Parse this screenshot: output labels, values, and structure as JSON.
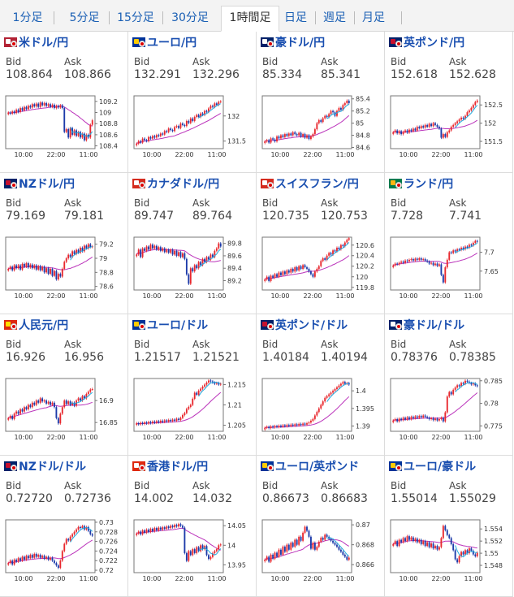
{
  "tabs": [
    {
      "label": "1分足"
    },
    {
      "label": "5分足"
    },
    {
      "label": "15分足"
    },
    {
      "label": "30分足"
    },
    {
      "label": "1時間足",
      "active": true
    },
    {
      "label": "日足"
    },
    {
      "label": "週足"
    },
    {
      "label": "月足"
    }
  ],
  "colors": {
    "up": "#e8282e",
    "down": "#1c3aa9",
    "ma_long": "#bb33bb",
    "ma_short": "#22aadd",
    "link": "#1a4fb0"
  },
  "bid_label": "Bid",
  "ask_label": "Ask",
  "pairs": [
    {
      "name": "米ドル/円",
      "flag": "usd-jpy-flag-icon",
      "bid": "108.864",
      "ask": "108.866"
    },
    {
      "name": "ユーロ/円",
      "flag": "eur-jpy-flag-icon",
      "bid": "132.291",
      "ask": "132.296"
    },
    {
      "name": "豪ドル/円",
      "flag": "aud-jpy-flag-icon",
      "bid": "85.334",
      "ask": "85.341"
    },
    {
      "name": "英ポンド/円",
      "flag": "gbp-jpy-flag-icon",
      "bid": "152.618",
      "ask": "152.628"
    },
    {
      "name": "NZドル/円",
      "flag": "nzd-jpy-flag-icon",
      "bid": "79.169",
      "ask": "79.181"
    },
    {
      "name": "カナダドル/円",
      "flag": "cad-jpy-flag-icon",
      "bid": "89.747",
      "ask": "89.764"
    },
    {
      "name": "スイスフラン/円",
      "flag": "chf-jpy-flag-icon",
      "bid": "120.735",
      "ask": "120.753"
    },
    {
      "name": "ランド/円",
      "flag": "zar-jpy-flag-icon",
      "bid": "7.728",
      "ask": "7.741"
    },
    {
      "name": "人民元/円",
      "flag": "cny-jpy-flag-icon",
      "bid": "16.926",
      "ask": "16.956"
    },
    {
      "name": "ユーロ/ドル",
      "flag": "eur-usd-flag-icon",
      "bid": "1.21517",
      "ask": "1.21521"
    },
    {
      "name": "英ポンド/ドル",
      "flag": "gbp-usd-flag-icon",
      "bid": "1.40184",
      "ask": "1.40194"
    },
    {
      "name": "豪ドル/ドル",
      "flag": "aud-usd-flag-icon",
      "bid": "0.78376",
      "ask": "0.78385"
    },
    {
      "name": "NZドル/ドル",
      "flag": "nzd-usd-flag-icon",
      "bid": "0.72720",
      "ask": "0.72736"
    },
    {
      "name": "香港ドル/円",
      "flag": "hkd-jpy-flag-icon",
      "bid": "14.002",
      "ask": "14.032"
    },
    {
      "name": "ユーロ/英ポンド",
      "flag": "eur-gbp-flag-icon",
      "bid": "0.86673",
      "ask": "0.86683"
    },
    {
      "name": "ユーロ/豪ドル",
      "flag": "eur-aud-flag-icon",
      "bid": "1.55014",
      "ask": "1.55029"
    }
  ],
  "chart_data": [
    {
      "type": "candlestick",
      "xticks": [
        "10:00",
        "22:00",
        "11:00"
      ],
      "yticks": [
        "109.2",
        "109",
        "108.8",
        "108.6",
        "108.4"
      ],
      "ylim": [
        108.35,
        109.3
      ],
      "close": [
        109.0,
        108.98,
        109.02,
        108.99,
        109.05,
        109.01,
        109.08,
        109.04,
        109.1,
        109.06,
        109.12,
        109.09,
        109.15,
        109.11,
        109.16,
        109.1,
        109.18,
        109.13,
        109.17,
        109.12,
        109.15,
        109.1,
        109.14,
        109.08,
        109.12,
        109.09,
        109.13,
        109.08,
        108.65,
        108.7,
        108.55,
        108.72,
        108.6,
        108.68,
        108.58,
        108.65,
        108.55,
        108.62,
        108.5,
        108.6,
        108.55,
        108.78,
        108.86
      ]
    },
    {
      "type": "candlestick",
      "xticks": [
        "10:00",
        "22:00",
        "11:00"
      ],
      "yticks": [
        "132",
        "131.5"
      ],
      "ylim": [
        131.35,
        132.4
      ],
      "close": [
        131.45,
        131.5,
        131.47,
        131.55,
        131.52,
        131.5,
        131.58,
        131.55,
        131.6,
        131.57,
        131.62,
        131.6,
        131.65,
        131.63,
        131.7,
        131.68,
        131.75,
        131.72,
        131.7,
        131.78,
        131.8,
        131.76,
        131.85,
        131.82,
        131.8,
        131.9,
        131.86,
        131.95,
        131.9,
        131.98,
        132.02,
        131.98,
        132.05,
        132.02,
        132.1,
        132.08,
        132.15,
        132.2,
        132.18,
        132.25,
        132.22,
        132.28,
        132.29
      ]
    },
    {
      "type": "candlestick",
      "xticks": [
        "10:00",
        "22:00",
        "11:00"
      ],
      "yticks": [
        "85.4",
        "85.2",
        "85",
        "84.8",
        "84.6"
      ],
      "ylim": [
        84.58,
        85.45
      ],
      "close": [
        84.7,
        84.72,
        84.68,
        84.75,
        84.73,
        84.7,
        84.78,
        84.75,
        84.8,
        84.77,
        84.82,
        84.79,
        84.83,
        84.8,
        84.85,
        84.82,
        84.8,
        84.84,
        84.78,
        84.82,
        84.76,
        84.8,
        84.74,
        84.78,
        84.82,
        84.9,
        85.0,
        85.05,
        85.02,
        85.08,
        85.12,
        85.1,
        85.15,
        85.2,
        85.18,
        85.12,
        85.2,
        85.25,
        85.22,
        85.3,
        85.33,
        85.37,
        85.33
      ]
    },
    {
      "type": "candlestick",
      "xticks": [
        "10:00",
        "22:00",
        "11:00"
      ],
      "yticks": [
        "152.5",
        "152",
        "151.5"
      ],
      "ylim": [
        151.3,
        152.75
      ],
      "close": [
        151.75,
        151.8,
        151.72,
        151.78,
        151.7,
        151.76,
        151.8,
        151.74,
        151.82,
        151.78,
        151.85,
        151.8,
        151.9,
        151.86,
        151.92,
        151.88,
        151.95,
        151.9,
        151.98,
        151.92,
        152.0,
        151.95,
        151.9,
        151.85,
        151.6,
        151.7,
        151.62,
        151.75,
        151.8,
        151.9,
        151.95,
        152.0,
        152.05,
        152.1,
        152.15,
        152.12,
        152.2,
        152.3,
        152.35,
        152.42,
        152.5,
        152.58,
        152.62
      ]
    },
    {
      "type": "candlestick",
      "xticks": [
        "10:00",
        "22:00",
        "11:00"
      ],
      "yticks": [
        "79.2",
        "79",
        "78.8",
        "78.6"
      ],
      "ylim": [
        78.55,
        79.3
      ],
      "close": [
        78.85,
        78.88,
        78.83,
        78.9,
        78.86,
        78.9,
        78.84,
        78.92,
        78.88,
        78.93,
        78.87,
        78.91,
        78.86,
        78.9,
        78.84,
        78.89,
        78.83,
        78.88,
        78.8,
        78.86,
        78.78,
        78.85,
        78.75,
        78.82,
        78.7,
        78.78,
        78.74,
        78.85,
        78.95,
        79.0,
        79.05,
        79.02,
        79.1,
        79.06,
        79.12,
        79.08,
        79.15,
        79.1,
        79.18,
        79.14,
        79.2,
        79.16,
        79.17
      ]
    },
    {
      "type": "candlestick",
      "xticks": [
        "10:00",
        "22:00",
        "11:00"
      ],
      "yticks": [
        "89.8",
        "89.6",
        "89.4",
        "89.2"
      ],
      "ylim": [
        89.05,
        89.9
      ],
      "close": [
        89.62,
        89.7,
        89.58,
        89.72,
        89.68,
        89.75,
        89.7,
        89.78,
        89.72,
        89.76,
        89.7,
        89.74,
        89.68,
        89.72,
        89.66,
        89.7,
        89.65,
        89.7,
        89.62,
        89.68,
        89.6,
        89.66,
        89.58,
        89.64,
        89.55,
        89.3,
        89.15,
        89.4,
        89.35,
        89.45,
        89.4,
        89.5,
        89.45,
        89.55,
        89.5,
        89.58,
        89.54,
        89.62,
        89.58,
        89.68,
        89.72,
        89.8,
        89.75
      ]
    },
    {
      "type": "candlestick",
      "xticks": [
        "10:00",
        "22:00",
        "11:00"
      ],
      "yticks": [
        "120.6",
        "120.4",
        "120.2",
        "120",
        "119.8"
      ],
      "ylim": [
        119.75,
        120.75
      ],
      "close": [
        119.95,
        120.0,
        119.92,
        120.02,
        119.98,
        120.05,
        120.0,
        120.08,
        120.03,
        120.1,
        120.05,
        120.12,
        120.08,
        120.15,
        120.1,
        120.18,
        120.12,
        120.2,
        120.15,
        120.22,
        120.18,
        120.15,
        120.1,
        120.05,
        120.0,
        120.1,
        120.15,
        120.2,
        120.3,
        120.35,
        120.32,
        120.4,
        120.45,
        120.42,
        120.5,
        120.48,
        120.55,
        120.52,
        120.6,
        120.58,
        120.65,
        120.7,
        120.73
      ]
    },
    {
      "type": "candlestick",
      "xticks": [
        "10:00",
        "22:00",
        "11:00"
      ],
      "yticks": [
        "7.7",
        "7.65"
      ],
      "ylim": [
        7.6,
        7.74
      ],
      "close": [
        7.665,
        7.67,
        7.668,
        7.672,
        7.675,
        7.672,
        7.678,
        7.676,
        7.68,
        7.682,
        7.678,
        7.683,
        7.68,
        7.684,
        7.68,
        7.682,
        7.678,
        7.675,
        7.67,
        7.672,
        7.666,
        7.67,
        7.664,
        7.668,
        7.64,
        7.62,
        7.66,
        7.68,
        7.7,
        7.698,
        7.705,
        7.702,
        7.708,
        7.706,
        7.712,
        7.708,
        7.715,
        7.712,
        7.72,
        7.718,
        7.725,
        7.73,
        7.728
      ]
    },
    {
      "type": "candlestick",
      "xticks": [
        "10:00",
        "22:00",
        "11:00"
      ],
      "yticks": [
        "16.9",
        "16.85"
      ],
      "ylim": [
        16.83,
        16.95
      ],
      "close": [
        16.86,
        16.865,
        16.858,
        16.87,
        16.875,
        16.87,
        16.88,
        16.875,
        16.885,
        16.88,
        16.89,
        16.885,
        16.895,
        16.89,
        16.9,
        16.895,
        16.905,
        16.898,
        16.9,
        16.893,
        16.897,
        16.89,
        16.895,
        16.885,
        16.86,
        16.848,
        16.87,
        16.885,
        16.9,
        16.892,
        16.898,
        16.89,
        16.895,
        16.888,
        16.9,
        16.905,
        16.9,
        16.91,
        16.905,
        16.915,
        16.92,
        16.925,
        16.926
      ]
    },
    {
      "type": "candlestick",
      "xticks": [
        "10:00",
        "22:00",
        "11:00"
      ],
      "yticks": [
        "1.215",
        "1.21",
        "1.205"
      ],
      "ylim": [
        1.2035,
        1.2165
      ],
      "close": [
        1.2055,
        1.2052,
        1.2056,
        1.2053,
        1.2057,
        1.2054,
        1.2058,
        1.2055,
        1.2059,
        1.2056,
        1.206,
        1.2057,
        1.2061,
        1.2058,
        1.2062,
        1.2059,
        1.2063,
        1.206,
        1.2064,
        1.2061,
        1.2066,
        1.2063,
        1.2068,
        1.2075,
        1.208,
        1.209,
        1.2095,
        1.21,
        1.2115,
        1.213,
        1.2125,
        1.2135,
        1.214,
        1.2145,
        1.215,
        1.2155,
        1.216,
        1.2158,
        1.2155,
        1.2152,
        1.2154,
        1.215,
        1.2152
      ]
    },
    {
      "type": "candlestick",
      "xticks": [
        "10:00",
        "22:00",
        "11:00"
      ],
      "yticks": [
        "1.4",
        "1.395",
        "1.39"
      ],
      "ylim": [
        1.3885,
        1.4035
      ],
      "close": [
        1.3895,
        1.3898,
        1.3894,
        1.3899,
        1.3896,
        1.39,
        1.3897,
        1.3901,
        1.3898,
        1.3902,
        1.3899,
        1.3903,
        1.39,
        1.3904,
        1.3901,
        1.3905,
        1.3902,
        1.3906,
        1.3903,
        1.3907,
        1.3904,
        1.3908,
        1.391,
        1.3915,
        1.392,
        1.393,
        1.394,
        1.395,
        1.396,
        1.397,
        1.398,
        1.3985,
        1.399,
        1.3995,
        1.4,
        1.4005,
        1.401,
        1.4015,
        1.402,
        1.4025,
        1.402,
        1.4022,
        1.4018
      ]
    },
    {
      "type": "candlestick",
      "xticks": [
        "10:00",
        "22:00",
        "11:00"
      ],
      "yticks": [
        "0.785",
        "0.78",
        "0.775"
      ],
      "ylim": [
        0.7738,
        0.7855
      ],
      "close": [
        0.7762,
        0.7765,
        0.776,
        0.7766,
        0.7763,
        0.7768,
        0.7764,
        0.7769,
        0.7765,
        0.777,
        0.7767,
        0.7771,
        0.7768,
        0.7772,
        0.7769,
        0.7773,
        0.777,
        0.7768,
        0.7765,
        0.7767,
        0.7763,
        0.7766,
        0.7762,
        0.7765,
        0.7768,
        0.776,
        0.778,
        0.7815,
        0.7825,
        0.782,
        0.783,
        0.7835,
        0.784,
        0.7838,
        0.7845,
        0.7843,
        0.785,
        0.7848,
        0.7845,
        0.7842,
        0.7844,
        0.784,
        0.7838
      ]
    },
    {
      "type": "candlestick",
      "xticks": [
        "10:00",
        "22:00",
        "11:00"
      ],
      "yticks": [
        "0.73",
        "0.728",
        "0.726",
        "0.724",
        "0.722",
        "0.72"
      ],
      "ylim": [
        0.7195,
        0.7305
      ],
      "close": [
        0.7215,
        0.722,
        0.7212,
        0.7222,
        0.7218,
        0.7225,
        0.722,
        0.7228,
        0.7222,
        0.723,
        0.7225,
        0.7232,
        0.7226,
        0.7234,
        0.7228,
        0.7232,
        0.7226,
        0.723,
        0.7224,
        0.7228,
        0.7222,
        0.7226,
        0.722,
        0.7215,
        0.721,
        0.7205,
        0.722,
        0.724,
        0.7255,
        0.7265,
        0.7262,
        0.727,
        0.7275,
        0.728,
        0.7285,
        0.729,
        0.7288,
        0.7292,
        0.7285,
        0.729,
        0.7282,
        0.7275,
        0.7272
      ]
    },
    {
      "type": "candlestick",
      "xticks": [
        "10:00",
        "22:00",
        "11:00"
      ],
      "yticks": [
        "14.05",
        "14",
        "13.95"
      ],
      "ylim": [
        13.93,
        14.065
      ],
      "close": [
        14.03,
        14.035,
        14.028,
        14.038,
        14.032,
        14.04,
        14.034,
        14.042,
        14.036,
        14.044,
        14.038,
        14.045,
        14.04,
        14.046,
        14.042,
        14.048,
        14.044,
        14.05,
        14.046,
        14.052,
        14.048,
        14.054,
        14.05,
        14.045,
        13.98,
        13.96,
        13.985,
        13.975,
        13.99,
        13.98,
        13.995,
        13.985,
        14.0,
        13.99,
        13.998,
        13.975,
        13.965,
        13.97,
        13.98,
        13.985,
        13.99,
        14.0,
        14.002
      ]
    },
    {
      "type": "candlestick",
      "xticks": [
        "10:00",
        "22:00",
        "11:00"
      ],
      "yticks": [
        "0.87",
        "0.868",
        "0.866"
      ],
      "ylim": [
        0.8652,
        0.8705
      ],
      "close": [
        0.8665,
        0.8668,
        0.8663,
        0.867,
        0.8666,
        0.8672,
        0.8668,
        0.8675,
        0.867,
        0.8678,
        0.8673,
        0.868,
        0.8675,
        0.8682,
        0.8678,
        0.8685,
        0.868,
        0.8688,
        0.8684,
        0.8692,
        0.8698,
        0.8694,
        0.8688,
        0.8676,
        0.8682,
        0.8675,
        0.8678,
        0.8683,
        0.8687,
        0.8685,
        0.869,
        0.8688,
        0.8686,
        0.8684,
        0.8682,
        0.868,
        0.8678,
        0.8675,
        0.8673,
        0.867,
        0.8668,
        0.8665,
        0.8667
      ]
    },
    {
      "type": "candlestick",
      "xticks": [
        "10:00",
        "22:00",
        "11:00"
      ],
      "yticks": [
        "1.554",
        "1.552",
        "1.55",
        "1.548"
      ],
      "ylim": [
        1.5468,
        1.5555
      ],
      "close": [
        1.5515,
        1.552,
        1.5512,
        1.5522,
        1.5518,
        1.5525,
        1.552,
        1.5528,
        1.5522,
        1.5526,
        1.552,
        1.5524,
        1.5518,
        1.5522,
        1.5515,
        1.552,
        1.5512,
        1.5518,
        1.551,
        1.5516,
        1.5508,
        1.5512,
        1.5506,
        1.551,
        1.5525,
        1.5545,
        1.5538,
        1.553,
        1.5525,
        1.5515,
        1.5505,
        1.549,
        1.5485,
        1.5495,
        1.5502,
        1.5498,
        1.5505,
        1.55,
        1.5508,
        1.5504,
        1.5498,
        1.5495,
        1.5501
      ]
    }
  ]
}
